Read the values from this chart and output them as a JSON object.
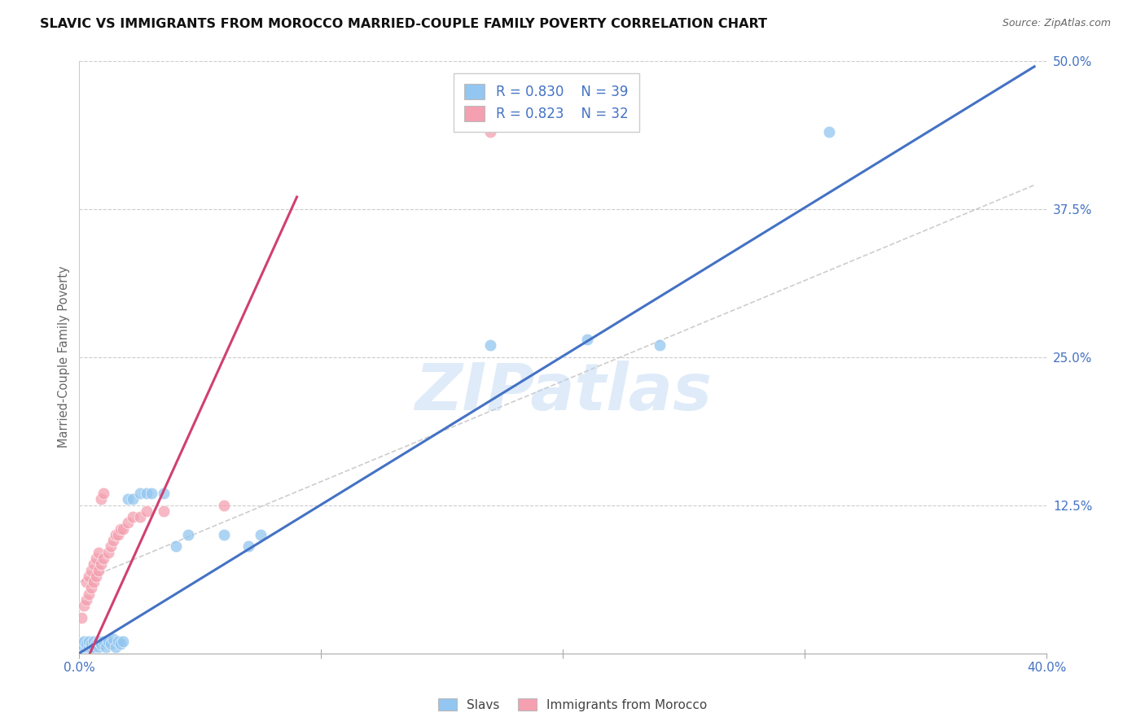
{
  "title": "SLAVIC VS IMMIGRANTS FROM MOROCCO MARRIED-COUPLE FAMILY POVERTY CORRELATION CHART",
  "source": "Source: ZipAtlas.com",
  "ylabel": "Married-Couple Family Poverty",
  "watermark": "ZIPatlas",
  "legend": {
    "slavs_R": "0.830",
    "slavs_N": "39",
    "morocco_R": "0.823",
    "morocco_N": "32"
  },
  "slavs_color": "#93c6f0",
  "morocco_color": "#f4a0b0",
  "slavs_line_color": "#4472c4",
  "morocco_line_color": "#d04070",
  "diagonal_color": "#c8c8c8",
  "background": "#ffffff",
  "grid_color": "#cccccc",
  "slavs_points": [
    [
      0.001,
      0.008
    ],
    [
      0.002,
      0.005
    ],
    [
      0.002,
      0.01
    ],
    [
      0.003,
      0.005
    ],
    [
      0.003,
      0.008
    ],
    [
      0.004,
      0.005
    ],
    [
      0.004,
      0.01
    ],
    [
      0.005,
      0.005
    ],
    [
      0.005,
      0.008
    ],
    [
      0.006,
      0.005
    ],
    [
      0.006,
      0.01
    ],
    [
      0.007,
      0.008
    ],
    [
      0.008,
      0.005
    ],
    [
      0.008,
      0.01
    ],
    [
      0.009,
      0.008
    ],
    [
      0.01,
      0.01
    ],
    [
      0.011,
      0.005
    ],
    [
      0.012,
      0.01
    ],
    [
      0.013,
      0.008
    ],
    [
      0.014,
      0.012
    ],
    [
      0.015,
      0.005
    ],
    [
      0.016,
      0.01
    ],
    [
      0.017,
      0.008
    ],
    [
      0.018,
      0.01
    ],
    [
      0.02,
      0.13
    ],
    [
      0.022,
      0.13
    ],
    [
      0.025,
      0.135
    ],
    [
      0.028,
      0.135
    ],
    [
      0.03,
      0.135
    ],
    [
      0.035,
      0.135
    ],
    [
      0.04,
      0.09
    ],
    [
      0.045,
      0.1
    ],
    [
      0.06,
      0.1
    ],
    [
      0.07,
      0.09
    ],
    [
      0.075,
      0.1
    ],
    [
      0.17,
      0.26
    ],
    [
      0.21,
      0.265
    ],
    [
      0.24,
      0.26
    ],
    [
      0.31,
      0.44
    ]
  ],
  "morocco_points": [
    [
      0.001,
      0.03
    ],
    [
      0.002,
      0.04
    ],
    [
      0.003,
      0.045
    ],
    [
      0.003,
      0.06
    ],
    [
      0.004,
      0.05
    ],
    [
      0.004,
      0.065
    ],
    [
      0.005,
      0.055
    ],
    [
      0.005,
      0.07
    ],
    [
      0.006,
      0.06
    ],
    [
      0.006,
      0.075
    ],
    [
      0.007,
      0.065
    ],
    [
      0.007,
      0.08
    ],
    [
      0.008,
      0.07
    ],
    [
      0.008,
      0.085
    ],
    [
      0.009,
      0.075
    ],
    [
      0.009,
      0.13
    ],
    [
      0.01,
      0.08
    ],
    [
      0.01,
      0.135
    ],
    [
      0.012,
      0.085
    ],
    [
      0.013,
      0.09
    ],
    [
      0.014,
      0.095
    ],
    [
      0.015,
      0.1
    ],
    [
      0.016,
      0.1
    ],
    [
      0.017,
      0.105
    ],
    [
      0.018,
      0.105
    ],
    [
      0.02,
      0.11
    ],
    [
      0.022,
      0.115
    ],
    [
      0.025,
      0.115
    ],
    [
      0.028,
      0.12
    ],
    [
      0.035,
      0.12
    ],
    [
      0.06,
      0.125
    ],
    [
      0.17,
      0.44
    ]
  ],
  "slavs_line": [
    [
      0.0,
      0.0
    ],
    [
      0.395,
      0.495
    ]
  ],
  "morocco_line": [
    [
      0.0,
      -0.02
    ],
    [
      0.09,
      0.385
    ]
  ],
  "diagonal_line": [
    [
      0.0,
      0.06
    ],
    [
      0.395,
      0.395
    ]
  ],
  "xlim": [
    0.0,
    0.4
  ],
  "ylim": [
    0.0,
    0.5
  ]
}
